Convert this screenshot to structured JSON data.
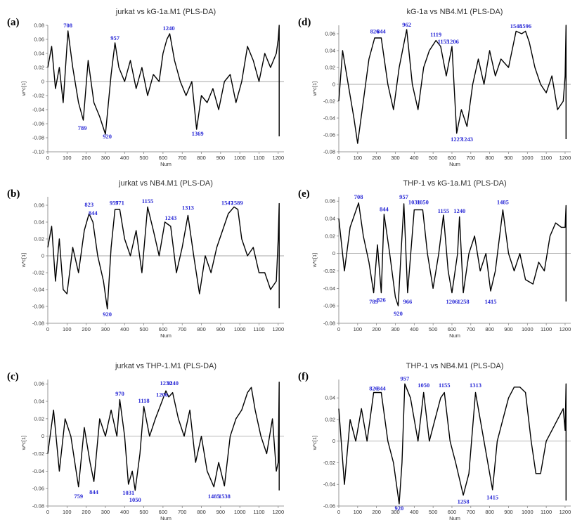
{
  "chart_data": [
    {
      "id": "a",
      "panel_label": "(a)",
      "type": "line",
      "title": "jurkat vs kG-1a.M1 (PLS-DA)",
      "xlabel": "Num",
      "ylabel": "w*c[1]",
      "xlim": [
        0,
        1230
      ],
      "ylim": [
        -0.1,
        0.08
      ],
      "xticks": [
        0,
        100,
        200,
        300,
        400,
        500,
        600,
        700,
        800,
        900,
        1000,
        1100,
        1200
      ],
      "yticks": [
        -0.1,
        -0.08,
        -0.06,
        -0.04,
        -0.02,
        0,
        0.02,
        0.04,
        0.06,
        0.08
      ],
      "annotations": [
        {
          "text": "708",
          "x": 105,
          "y": 0.074
        },
        {
          "text": "957",
          "x": 350,
          "y": 0.056
        },
        {
          "text": "1240",
          "x": 630,
          "y": 0.07
        },
        {
          "text": "789",
          "x": 180,
          "y": -0.06
        },
        {
          "text": "920",
          "x": 310,
          "y": -0.072
        },
        {
          "text": "1369",
          "x": 780,
          "y": -0.068
        }
      ],
      "series": [
        {
          "x": [
            0,
            20,
            40,
            60,
            80,
            105,
            130,
            160,
            185,
            210,
            240,
            270,
            300,
            330,
            350,
            370,
            400,
            430,
            460,
            490,
            520,
            550,
            580,
            600,
            620,
            635,
            660,
            690,
            720,
            750,
            775,
            800,
            830,
            860,
            890,
            920,
            950,
            980,
            1010,
            1040,
            1070,
            1100,
            1130,
            1160,
            1190,
            1200,
            1205,
            1205
          ],
          "y": [
            0.02,
            0.05,
            -0.01,
            0.02,
            -0.03,
            0.072,
            0.02,
            -0.03,
            -0.055,
            0.03,
            -0.03,
            -0.05,
            -0.075,
            0.01,
            0.055,
            0.02,
            0.0,
            0.03,
            -0.01,
            0.02,
            -0.02,
            0.01,
            0.0,
            0.04,
            0.06,
            0.068,
            0.03,
            0.0,
            -0.02,
            0.0,
            -0.068,
            -0.02,
            -0.03,
            -0.01,
            -0.04,
            0.0,
            0.01,
            -0.03,
            0.0,
            0.05,
            0.03,
            0.0,
            0.04,
            0.02,
            0.04,
            0.06,
            0.08,
            -0.078
          ]
        }
      ]
    },
    {
      "id": "b",
      "panel_label": "(b)",
      "type": "line",
      "title": "jurkat vs NB4.M1 (PLS-DA)",
      "xlabel": "Num",
      "ylabel": "w*c[1]",
      "xlim": [
        0,
        1230
      ],
      "ylim": [
        -0.08,
        0.07
      ],
      "xticks": [
        0,
        100,
        200,
        300,
        400,
        500,
        600,
        700,
        800,
        900,
        1000,
        1100,
        1200
      ],
      "yticks": [
        -0.08,
        -0.06,
        -0.04,
        -0.02,
        0,
        0.02,
        0.04,
        0.06
      ],
      "annotations": [
        {
          "text": "823",
          "x": 215,
          "y": 0.056
        },
        {
          "text": "844",
          "x": 235,
          "y": 0.046
        },
        {
          "text": "957",
          "x": 345,
          "y": 0.058
        },
        {
          "text": "971",
          "x": 375,
          "y": 0.058
        },
        {
          "text": "1155",
          "x": 520,
          "y": 0.06
        },
        {
          "text": "1243",
          "x": 640,
          "y": 0.04
        },
        {
          "text": "1313",
          "x": 730,
          "y": 0.052
        },
        {
          "text": "1547",
          "x": 935,
          "y": 0.058
        },
        {
          "text": "1589",
          "x": 985,
          "y": 0.058
        },
        {
          "text": "920",
          "x": 310,
          "y": -0.064
        }
      ],
      "series": [
        {
          "x": [
            0,
            20,
            40,
            60,
            80,
            100,
            130,
            160,
            190,
            215,
            235,
            260,
            290,
            310,
            330,
            350,
            375,
            400,
            430,
            460,
            490,
            520,
            550,
            580,
            610,
            640,
            670,
            700,
            730,
            760,
            790,
            820,
            850,
            880,
            910,
            940,
            970,
            990,
            1010,
            1040,
            1070,
            1100,
            1130,
            1160,
            1190,
            1200,
            1205,
            1205
          ],
          "y": [
            0.01,
            0.035,
            -0.03,
            0.02,
            -0.04,
            -0.045,
            0.01,
            -0.02,
            0.03,
            0.05,
            0.04,
            0.0,
            -0.03,
            -0.063,
            0.01,
            0.055,
            0.055,
            0.02,
            0.0,
            0.03,
            -0.02,
            0.058,
            0.03,
            0.0,
            0.04,
            0.035,
            -0.02,
            0.01,
            0.048,
            0.0,
            -0.045,
            0.0,
            -0.02,
            0.01,
            0.03,
            0.05,
            0.058,
            0.055,
            0.02,
            0.0,
            0.01,
            -0.02,
            -0.02,
            -0.04,
            -0.03,
            0.02,
            0.062,
            -0.062
          ]
        }
      ]
    },
    {
      "id": "c",
      "panel_label": "(c)",
      "type": "line",
      "title": "jurkat vs THP-1.M1 (PLS-DA)",
      "xlabel": "Num",
      "ylabel": "w*c[1]",
      "xlim": [
        0,
        1230
      ],
      "ylim": [
        -0.08,
        0.065
      ],
      "xticks": [
        0,
        100,
        200,
        300,
        400,
        500,
        600,
        700,
        800,
        900,
        1000,
        1100,
        1200
      ],
      "yticks": [
        -0.08,
        -0.06,
        -0.04,
        -0.02,
        0,
        0.02,
        0.04,
        0.06
      ],
      "annotations": [
        {
          "text": "970",
          "x": 375,
          "y": 0.044
        },
        {
          "text": "1118",
          "x": 500,
          "y": 0.036
        },
        {
          "text": "1206",
          "x": 595,
          "y": 0.043
        },
        {
          "text": "1230",
          "x": 615,
          "y": 0.056
        },
        {
          "text": "1240",
          "x": 650,
          "y": 0.056
        },
        {
          "text": "759",
          "x": 160,
          "y": -0.064
        },
        {
          "text": "844",
          "x": 240,
          "y": -0.059
        },
        {
          "text": "1031",
          "x": 420,
          "y": -0.06
        },
        {
          "text": "1050",
          "x": 455,
          "y": -0.068
        },
        {
          "text": "1485",
          "x": 865,
          "y": -0.064
        },
        {
          "text": "1538",
          "x": 920,
          "y": -0.064
        }
      ],
      "series": [
        {
          "x": [
            0,
            30,
            60,
            90,
            120,
            160,
            190,
            220,
            240,
            270,
            300,
            330,
            360,
            375,
            400,
            420,
            440,
            455,
            480,
            500,
            530,
            560,
            595,
            615,
            630,
            650,
            680,
            710,
            740,
            770,
            800,
            830,
            865,
            890,
            920,
            950,
            980,
            1010,
            1040,
            1060,
            1080,
            1110,
            1140,
            1170,
            1190,
            1200,
            1205,
            1205
          ],
          "y": [
            -0.02,
            0.03,
            -0.04,
            0.02,
            0.0,
            -0.058,
            0.01,
            -0.03,
            -0.052,
            0.02,
            0.0,
            0.03,
            0.0,
            0.042,
            0.0,
            -0.055,
            -0.04,
            -0.062,
            -0.02,
            0.034,
            0.0,
            0.02,
            0.04,
            0.052,
            0.045,
            0.05,
            0.02,
            0.0,
            0.03,
            -0.03,
            0.0,
            -0.04,
            -0.058,
            -0.03,
            -0.057,
            0.0,
            0.02,
            0.03,
            0.05,
            0.056,
            0.03,
            0.0,
            -0.02,
            0.02,
            -0.04,
            -0.03,
            0.062,
            -0.062
          ]
        }
      ]
    },
    {
      "id": "d",
      "panel_label": "(d)",
      "type": "line",
      "title": "kG-1a vs NB4.M1 (PLS-DA)",
      "xlabel": "Num",
      "ylabel": "w*c[1]",
      "xlim": [
        0,
        1230
      ],
      "ylim": [
        -0.08,
        0.07
      ],
      "xticks": [
        0,
        100,
        200,
        300,
        400,
        500,
        600,
        700,
        800,
        900,
        1000,
        1100,
        1200
      ],
      "yticks": [
        -0.08,
        -0.06,
        -0.04,
        -0.02,
        0,
        0.02,
        0.04,
        0.06
      ],
      "annotations": [
        {
          "text": "826",
          "x": 190,
          "y": 0.058
        },
        {
          "text": "844",
          "x": 225,
          "y": 0.058
        },
        {
          "text": "962",
          "x": 360,
          "y": 0.066
        },
        {
          "text": "1119",
          "x": 515,
          "y": 0.054
        },
        {
          "text": "1155",
          "x": 555,
          "y": 0.046
        },
        {
          "text": "1206",
          "x": 605,
          "y": 0.046
        },
        {
          "text": "1548",
          "x": 940,
          "y": 0.064
        },
        {
          "text": "1596",
          "x": 990,
          "y": 0.064
        },
        {
          "text": "1227",
          "x": 625,
          "y": -0.06
        },
        {
          "text": "1243",
          "x": 680,
          "y": -0.06
        }
      ],
      "series": [
        {
          "x": [
            0,
            20,
            50,
            80,
            100,
            130,
            160,
            190,
            225,
            260,
            290,
            320,
            360,
            390,
            420,
            450,
            480,
            515,
            540,
            570,
            600,
            625,
            650,
            680,
            710,
            740,
            770,
            800,
            830,
            860,
            900,
            940,
            970,
            990,
            1010,
            1040,
            1070,
            1100,
            1130,
            1160,
            1190,
            1200,
            1205,
            1205
          ],
          "y": [
            -0.02,
            0.04,
            0.0,
            -0.04,
            -0.07,
            -0.02,
            0.03,
            0.055,
            0.055,
            0.0,
            -0.03,
            0.02,
            0.065,
            0.0,
            -0.03,
            0.02,
            0.04,
            0.052,
            0.045,
            0.01,
            0.045,
            -0.058,
            -0.03,
            -0.05,
            0.0,
            0.03,
            0.0,
            0.04,
            0.01,
            0.03,
            0.02,
            0.063,
            0.06,
            0.063,
            0.05,
            0.02,
            0.0,
            -0.01,
            0.01,
            -0.03,
            -0.02,
            0.01,
            0.07,
            -0.065
          ]
        }
      ]
    },
    {
      "id": "e",
      "panel_label": "(e)",
      "type": "line",
      "title": "THP-1 vs kG-1a.M1 (PLS-DA)",
      "xlabel": "Num",
      "ylabel": "w*c[1]",
      "xlim": [
        0,
        1230
      ],
      "ylim": [
        -0.08,
        0.065
      ],
      "xticks": [
        0,
        100,
        200,
        300,
        400,
        500,
        600,
        700,
        800,
        900,
        1000,
        1100,
        1200
      ],
      "yticks": [
        -0.08,
        -0.06,
        -0.04,
        -0.02,
        0,
        0.02,
        0.04,
        0.06
      ],
      "annotations": [
        {
          "text": "708",
          "x": 105,
          "y": 0.06
        },
        {
          "text": "844",
          "x": 240,
          "y": 0.046
        },
        {
          "text": "957",
          "x": 345,
          "y": 0.06
        },
        {
          "text": "1031",
          "x": 400,
          "y": 0.054
        },
        {
          "text": "1050",
          "x": 445,
          "y": 0.054
        },
        {
          "text": "1155",
          "x": 555,
          "y": 0.044
        },
        {
          "text": "1240",
          "x": 640,
          "y": 0.044
        },
        {
          "text": "1485",
          "x": 870,
          "y": 0.054
        },
        {
          "text": "789",
          "x": 185,
          "y": -0.05
        },
        {
          "text": "826",
          "x": 225,
          "y": -0.048
        },
        {
          "text": "920",
          "x": 315,
          "y": -0.064
        },
        {
          "text": "966",
          "x": 365,
          "y": -0.05
        },
        {
          "text": "1206",
          "x": 600,
          "y": -0.05
        },
        {
          "text": "1258",
          "x": 660,
          "y": -0.05
        },
        {
          "text": "1415",
          "x": 805,
          "y": -0.05
        }
      ],
      "series": [
        {
          "x": [
            0,
            30,
            60,
            105,
            130,
            160,
            185,
            205,
            225,
            240,
            270,
            300,
            315,
            330,
            345,
            365,
            400,
            445,
            470,
            500,
            530,
            555,
            580,
            600,
            630,
            640,
            660,
            690,
            720,
            750,
            780,
            805,
            830,
            870,
            900,
            930,
            960,
            990,
            1030,
            1060,
            1090,
            1120,
            1150,
            1180,
            1200,
            1205,
            1205
          ],
          "y": [
            0.04,
            -0.02,
            0.03,
            0.058,
            0.02,
            -0.01,
            -0.045,
            0.01,
            -0.045,
            0.045,
            0.0,
            -0.05,
            -0.06,
            0.0,
            0.057,
            -0.045,
            0.05,
            0.05,
            0.0,
            -0.04,
            0.0,
            0.044,
            -0.02,
            -0.045,
            0.0,
            0.042,
            -0.045,
            0.0,
            0.02,
            -0.02,
            0.0,
            -0.043,
            -0.02,
            0.05,
            0.0,
            -0.02,
            0.0,
            -0.03,
            -0.035,
            -0.01,
            -0.02,
            0.02,
            0.035,
            0.03,
            0.03,
            0.055,
            -0.055
          ]
        }
      ]
    },
    {
      "id": "f",
      "panel_label": "(f)",
      "type": "line",
      "title": "THP-1 vs NB4.M1 (PLS-DA)",
      "xlabel": "Num",
      "ylabel": "w*c[1]",
      "xlim": [
        0,
        1230
      ],
      "ylim": [
        -0.06,
        0.057
      ],
      "xticks": [
        0,
        100,
        200,
        300,
        400,
        500,
        600,
        700,
        800,
        900,
        1000,
        1100,
        1200
      ],
      "yticks": [
        -0.06,
        -0.04,
        -0.02,
        0,
        0.02,
        0.04
      ],
      "annotations": [
        {
          "text": "826",
          "x": 185,
          "y": 0.045
        },
        {
          "text": "844",
          "x": 225,
          "y": 0.045
        },
        {
          "text": "957",
          "x": 350,
          "y": 0.054
        },
        {
          "text": "1050",
          "x": 450,
          "y": 0.048
        },
        {
          "text": "1155",
          "x": 560,
          "y": 0.048
        },
        {
          "text": "1313",
          "x": 725,
          "y": 0.048
        },
        {
          "text": "920",
          "x": 320,
          "y": -0.058
        },
        {
          "text": "1258",
          "x": 660,
          "y": -0.052
        },
        {
          "text": "1415",
          "x": 815,
          "y": -0.048
        }
      ],
      "series": [
        {
          "x": [
            0,
            30,
            60,
            90,
            120,
            150,
            185,
            225,
            260,
            290,
            320,
            335,
            350,
            380,
            420,
            450,
            480,
            510,
            540,
            560,
            590,
            620,
            660,
            690,
            725,
            750,
            780,
            815,
            840,
            870,
            900,
            930,
            960,
            990,
            1020,
            1045,
            1070,
            1100,
            1130,
            1160,
            1190,
            1200,
            1205,
            1205
          ],
          "y": [
            0.03,
            -0.04,
            0.02,
            0.0,
            0.03,
            0.0,
            0.045,
            0.045,
            0.0,
            -0.02,
            -0.058,
            -0.02,
            0.053,
            0.04,
            0.0,
            0.045,
            0.0,
            0.02,
            0.04,
            0.045,
            0.0,
            -0.02,
            -0.05,
            -0.03,
            0.045,
            0.02,
            -0.01,
            -0.045,
            0.0,
            0.02,
            0.04,
            0.05,
            0.05,
            0.045,
            0.0,
            -0.03,
            -0.03,
            0.0,
            0.01,
            0.02,
            0.03,
            0.01,
            0.053,
            -0.055
          ]
        }
      ]
    }
  ]
}
